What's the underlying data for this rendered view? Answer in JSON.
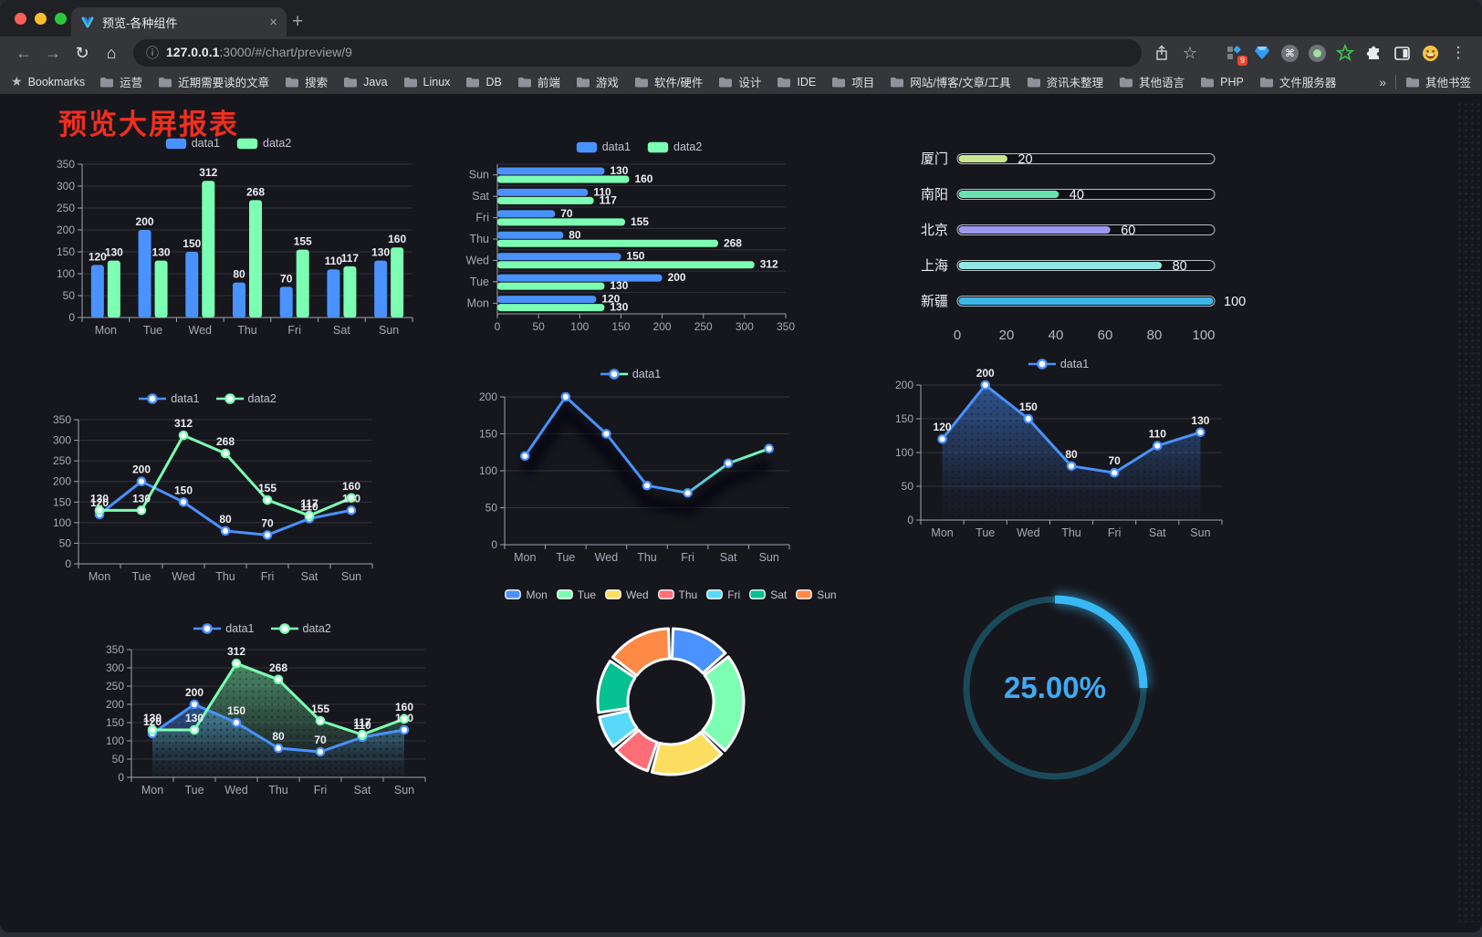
{
  "browser": {
    "tab_title": "预览-各种组件",
    "url_host": "127.0.0.1",
    "url_path": ":3000/#/chart/preview/9",
    "bookmarks_label": "Bookmarks",
    "bookmarks": [
      "运营",
      "近期需要读的文章",
      "搜索",
      "Java",
      "Linux",
      "DB",
      "前端",
      "游戏",
      "软件/硬件",
      "设计",
      "IDE",
      "项目",
      "网站/博客/文章/工具",
      "资讯未整理",
      "其他语言",
      "PHP",
      "文件服务器"
    ],
    "other_bookmarks": "其他书签",
    "extension_badge": "9",
    "icons": {
      "back": "←",
      "forward": "→",
      "reload": "↻",
      "home": "⌂",
      "info": "ⓘ",
      "star": "☆",
      "close": "×",
      "new_tab": "+",
      "more": "⋮",
      "overflow": "»",
      "command": "⌘",
      "bookmarks_star": "★"
    }
  },
  "page": {
    "title": "预览大屏报表",
    "title_color": "#ef2f1f"
  },
  "theme": {
    "background": "#16161d",
    "axis_label": "#a6aab4",
    "axis_line": "#9fa3b0",
    "grid_line": "#32333d",
    "data_label": "#edeef2",
    "blue": "#4992ff",
    "green": "#7cffb2"
  },
  "chart_data": [
    {
      "id": "bar-grouped",
      "type": "bar",
      "categories": [
        "Mon",
        "Tue",
        "Wed",
        "Thu",
        "Fri",
        "Sat",
        "Sun"
      ],
      "series": [
        {
          "name": "data1",
          "color": "#4992ff",
          "values": [
            120,
            200,
            150,
            80,
            70,
            110,
            130
          ]
        },
        {
          "name": "data2",
          "color": "#7cffb2",
          "values": [
            130,
            130,
            312,
            268,
            155,
            117,
            160
          ]
        }
      ],
      "ylim": [
        0,
        350
      ],
      "ystep": 50,
      "legend": "rect",
      "grid": true
    },
    {
      "id": "bar-horizontal",
      "type": "bar-horizontal",
      "categories": [
        "Mon",
        "Tue",
        "Wed",
        "Thu",
        "Fri",
        "Sat",
        "Sun"
      ],
      "series": [
        {
          "name": "data1",
          "color": "#4992ff",
          "values": [
            120,
            200,
            150,
            80,
            70,
            110,
            130
          ]
        },
        {
          "name": "data2",
          "color": "#7cffb2",
          "values": [
            130,
            130,
            312,
            268,
            155,
            117,
            160
          ]
        }
      ],
      "xlim": [
        0,
        350
      ],
      "xstep": 50,
      "legend": "rect",
      "grid": true
    },
    {
      "id": "progress-bars",
      "type": "progress",
      "categories": [
        "厦门",
        "南阳",
        "北京",
        "上海",
        "新疆"
      ],
      "values": [
        20,
        40,
        60,
        80,
        100
      ],
      "colors": [
        "#c9e78f",
        "#67e3ae",
        "#9d97f2",
        "#8fe6e2",
        "#3cb7e8"
      ],
      "xticks": [
        0,
        20,
        40,
        60,
        80,
        100
      ],
      "xlim": [
        0,
        100
      ]
    },
    {
      "id": "line-two",
      "type": "line",
      "categories": [
        "Mon",
        "Tue",
        "Wed",
        "Thu",
        "Fri",
        "Sat",
        "Sun"
      ],
      "series": [
        {
          "name": "data1",
          "color": "#4992ff",
          "values": [
            120,
            200,
            150,
            80,
            70,
            110,
            130
          ],
          "labels": true
        },
        {
          "name": "data2",
          "color": "#7cffb2",
          "values": [
            130,
            130,
            312,
            268,
            155,
            117,
            160
          ],
          "labels": true
        }
      ],
      "ylim": [
        0,
        350
      ],
      "ystep": 50,
      "legend": "line",
      "grid": true
    },
    {
      "id": "line-gradient",
      "type": "line",
      "categories": [
        "Mon",
        "Tue",
        "Wed",
        "Thu",
        "Fri",
        "Sat",
        "Sun"
      ],
      "series": [
        {
          "name": "data1",
          "color": "#4992ff",
          "gradient": [
            "#4992ff",
            "#7cffb2"
          ],
          "values": [
            120,
            200,
            150,
            80,
            70,
            110,
            130
          ],
          "labels": false,
          "shadow": true
        }
      ],
      "ylim": [
        0,
        200
      ],
      "ystep": 50,
      "legend": "gradline",
      "grid": true
    },
    {
      "id": "line-area",
      "type": "line",
      "categories": [
        "Mon",
        "Tue",
        "Wed",
        "Thu",
        "Fri",
        "Sat",
        "Sun"
      ],
      "series": [
        {
          "name": "data1",
          "color": "#4992ff",
          "values": [
            120,
            200,
            150,
            80,
            70,
            110,
            130
          ],
          "labels": true,
          "area": true
        }
      ],
      "ylim": [
        0,
        200
      ],
      "ystep": 50,
      "legend": "line",
      "grid": true
    },
    {
      "id": "line-area-two",
      "type": "line",
      "categories": [
        "Mon",
        "Tue",
        "Wed",
        "Thu",
        "Fri",
        "Sat",
        "Sun"
      ],
      "series": [
        {
          "name": "data1",
          "color": "#4992ff",
          "values": [
            120,
            200,
            150,
            80,
            70,
            110,
            130
          ],
          "labels": true,
          "area": true
        },
        {
          "name": "data2",
          "color": "#7cffb2",
          "values": [
            130,
            130,
            312,
            268,
            155,
            117,
            160
          ],
          "labels": true,
          "area": true
        }
      ],
      "ylim": [
        0,
        350
      ],
      "ystep": 50,
      "legend": "line",
      "grid": true
    },
    {
      "id": "donut",
      "type": "pie",
      "categories": [
        "Mon",
        "Tue",
        "Wed",
        "Thu",
        "Fri",
        "Sat",
        "Sun"
      ],
      "values": [
        120,
        200,
        150,
        80,
        70,
        110,
        130
      ],
      "colors": [
        "#4992ff",
        "#7cffb2",
        "#fddd60",
        "#ff6e76",
        "#58d9f9",
        "#05c091",
        "#ff8a45"
      ],
      "inner_radius_ratio": 0.59,
      "legend": "pie",
      "legend_position": "top"
    },
    {
      "id": "gauge",
      "type": "gauge",
      "value": 25,
      "label": "25.00%",
      "color": "#38b9f5",
      "track_color": "#1a4a59",
      "text_color": "#41a9f0"
    }
  ]
}
